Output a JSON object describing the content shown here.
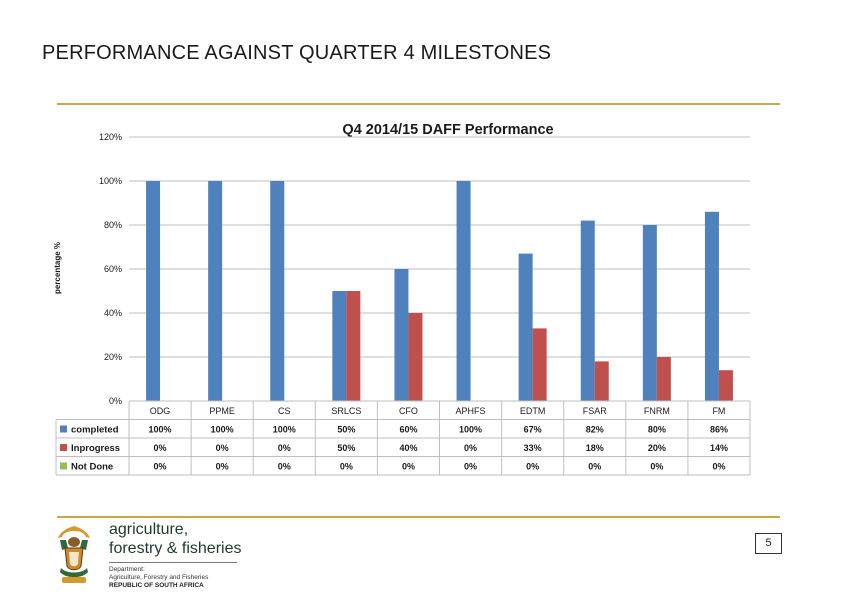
{
  "slide": {
    "title": "PERFORMANCE AGAINST QUARTER 4 MILESTONES",
    "page_number": "5",
    "accent_color": "#c9a84a"
  },
  "chart_data": {
    "type": "bar",
    "title": "Q4 2014/15 DAFF Performance",
    "ylabel": "percentage %",
    "xlabel": "",
    "ylim": [
      0,
      120
    ],
    "yticks": [
      "0%",
      "20%",
      "40%",
      "60%",
      "80%",
      "100%",
      "120%"
    ],
    "ytick_values": [
      0,
      20,
      40,
      60,
      80,
      100,
      120
    ],
    "grid": true,
    "categories": [
      "ODG",
      "PPME",
      "CS",
      "SRLCS",
      "CFO",
      "APHFS",
      "EDTM",
      "FSAR",
      "FNRM",
      "FM"
    ],
    "series": [
      {
        "name": "completed",
        "color": "#4f81bd",
        "values": [
          100,
          100,
          100,
          50,
          60,
          100,
          67,
          82,
          80,
          86
        ],
        "labels": [
          "100%",
          "100%",
          "100%",
          "50%",
          "60%",
          "100%",
          "67%",
          "82%",
          "80%",
          "86%"
        ]
      },
      {
        "name": "Inprogress",
        "color": "#c0504d",
        "values": [
          0,
          0,
          0,
          50,
          40,
          0,
          33,
          18,
          20,
          14
        ],
        "labels": [
          "0%",
          "0%",
          "0%",
          "50%",
          "40%",
          "0%",
          "33%",
          "18%",
          "20%",
          "14%"
        ]
      },
      {
        "name": "Not Done",
        "color": "#9bbb59",
        "values": [
          0,
          0,
          0,
          0,
          0,
          0,
          0,
          0,
          0,
          0
        ],
        "labels": [
          "0%",
          "0%",
          "0%",
          "0%",
          "0%",
          "0%",
          "0%",
          "0%",
          "0%",
          "0%"
        ]
      }
    ]
  },
  "branding": {
    "line1": "agriculture,",
    "line2": "forestry & fisheries",
    "dept1": "Department:",
    "dept2": "Agriculture, Forestry and Fisheries",
    "dept3": "REPUBLIC OF SOUTH AFRICA",
    "logo_icon": "coat-of-arms-icon"
  }
}
